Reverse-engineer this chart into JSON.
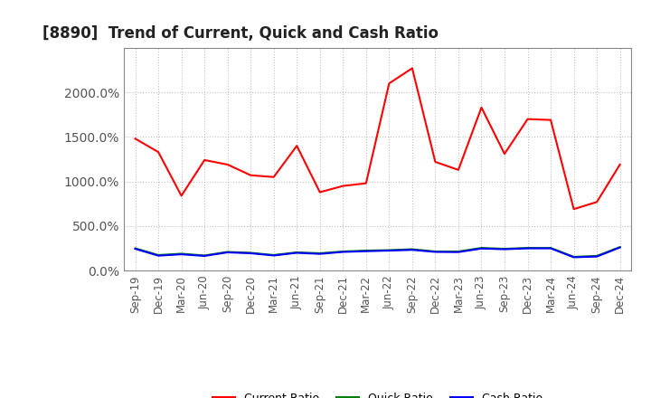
{
  "title": "[8890]  Trend of Current, Quick and Cash Ratio",
  "x_labels": [
    "Sep-19",
    "Dec-19",
    "Mar-20",
    "Jun-20",
    "Sep-20",
    "Dec-20",
    "Mar-21",
    "Jun-21",
    "Sep-21",
    "Dec-21",
    "Mar-22",
    "Jun-22",
    "Sep-22",
    "Dec-22",
    "Mar-23",
    "Jun-23",
    "Sep-23",
    "Dec-23",
    "Mar-24",
    "Jun-24",
    "Sep-24",
    "Dec-24"
  ],
  "current_ratio": [
    1480,
    1330,
    840,
    1240,
    1190,
    1070,
    1050,
    1400,
    880,
    950,
    980,
    2100,
    2270,
    1220,
    1130,
    1830,
    1310,
    1700,
    1690,
    690,
    770,
    1190
  ],
  "quick_ratio": [
    250,
    175,
    190,
    170,
    210,
    200,
    175,
    205,
    195,
    215,
    225,
    230,
    240,
    215,
    215,
    255,
    245,
    255,
    255,
    155,
    165,
    265
  ],
  "cash_ratio": [
    245,
    168,
    183,
    165,
    205,
    195,
    170,
    200,
    188,
    210,
    218,
    225,
    233,
    210,
    208,
    248,
    240,
    250,
    250,
    150,
    158,
    260
  ],
  "current_color": "#ff0000",
  "quick_color": "#008000",
  "cash_color": "#0000ff",
  "ylim_min": 0,
  "ylim_max": 2500,
  "ytick_vals": [
    0,
    500,
    1000,
    1500,
    2000
  ],
  "ytick_labels": [
    "0.0%",
    "500.0%",
    "1000.0%",
    "1500.0%",
    "2000.0%"
  ],
  "background_color": "#ffffff",
  "grid_color": "#999999",
  "title_fontsize": 12,
  "legend_fontsize": 9,
  "axis_fontsize": 8.5,
  "ytick_fontsize": 10
}
